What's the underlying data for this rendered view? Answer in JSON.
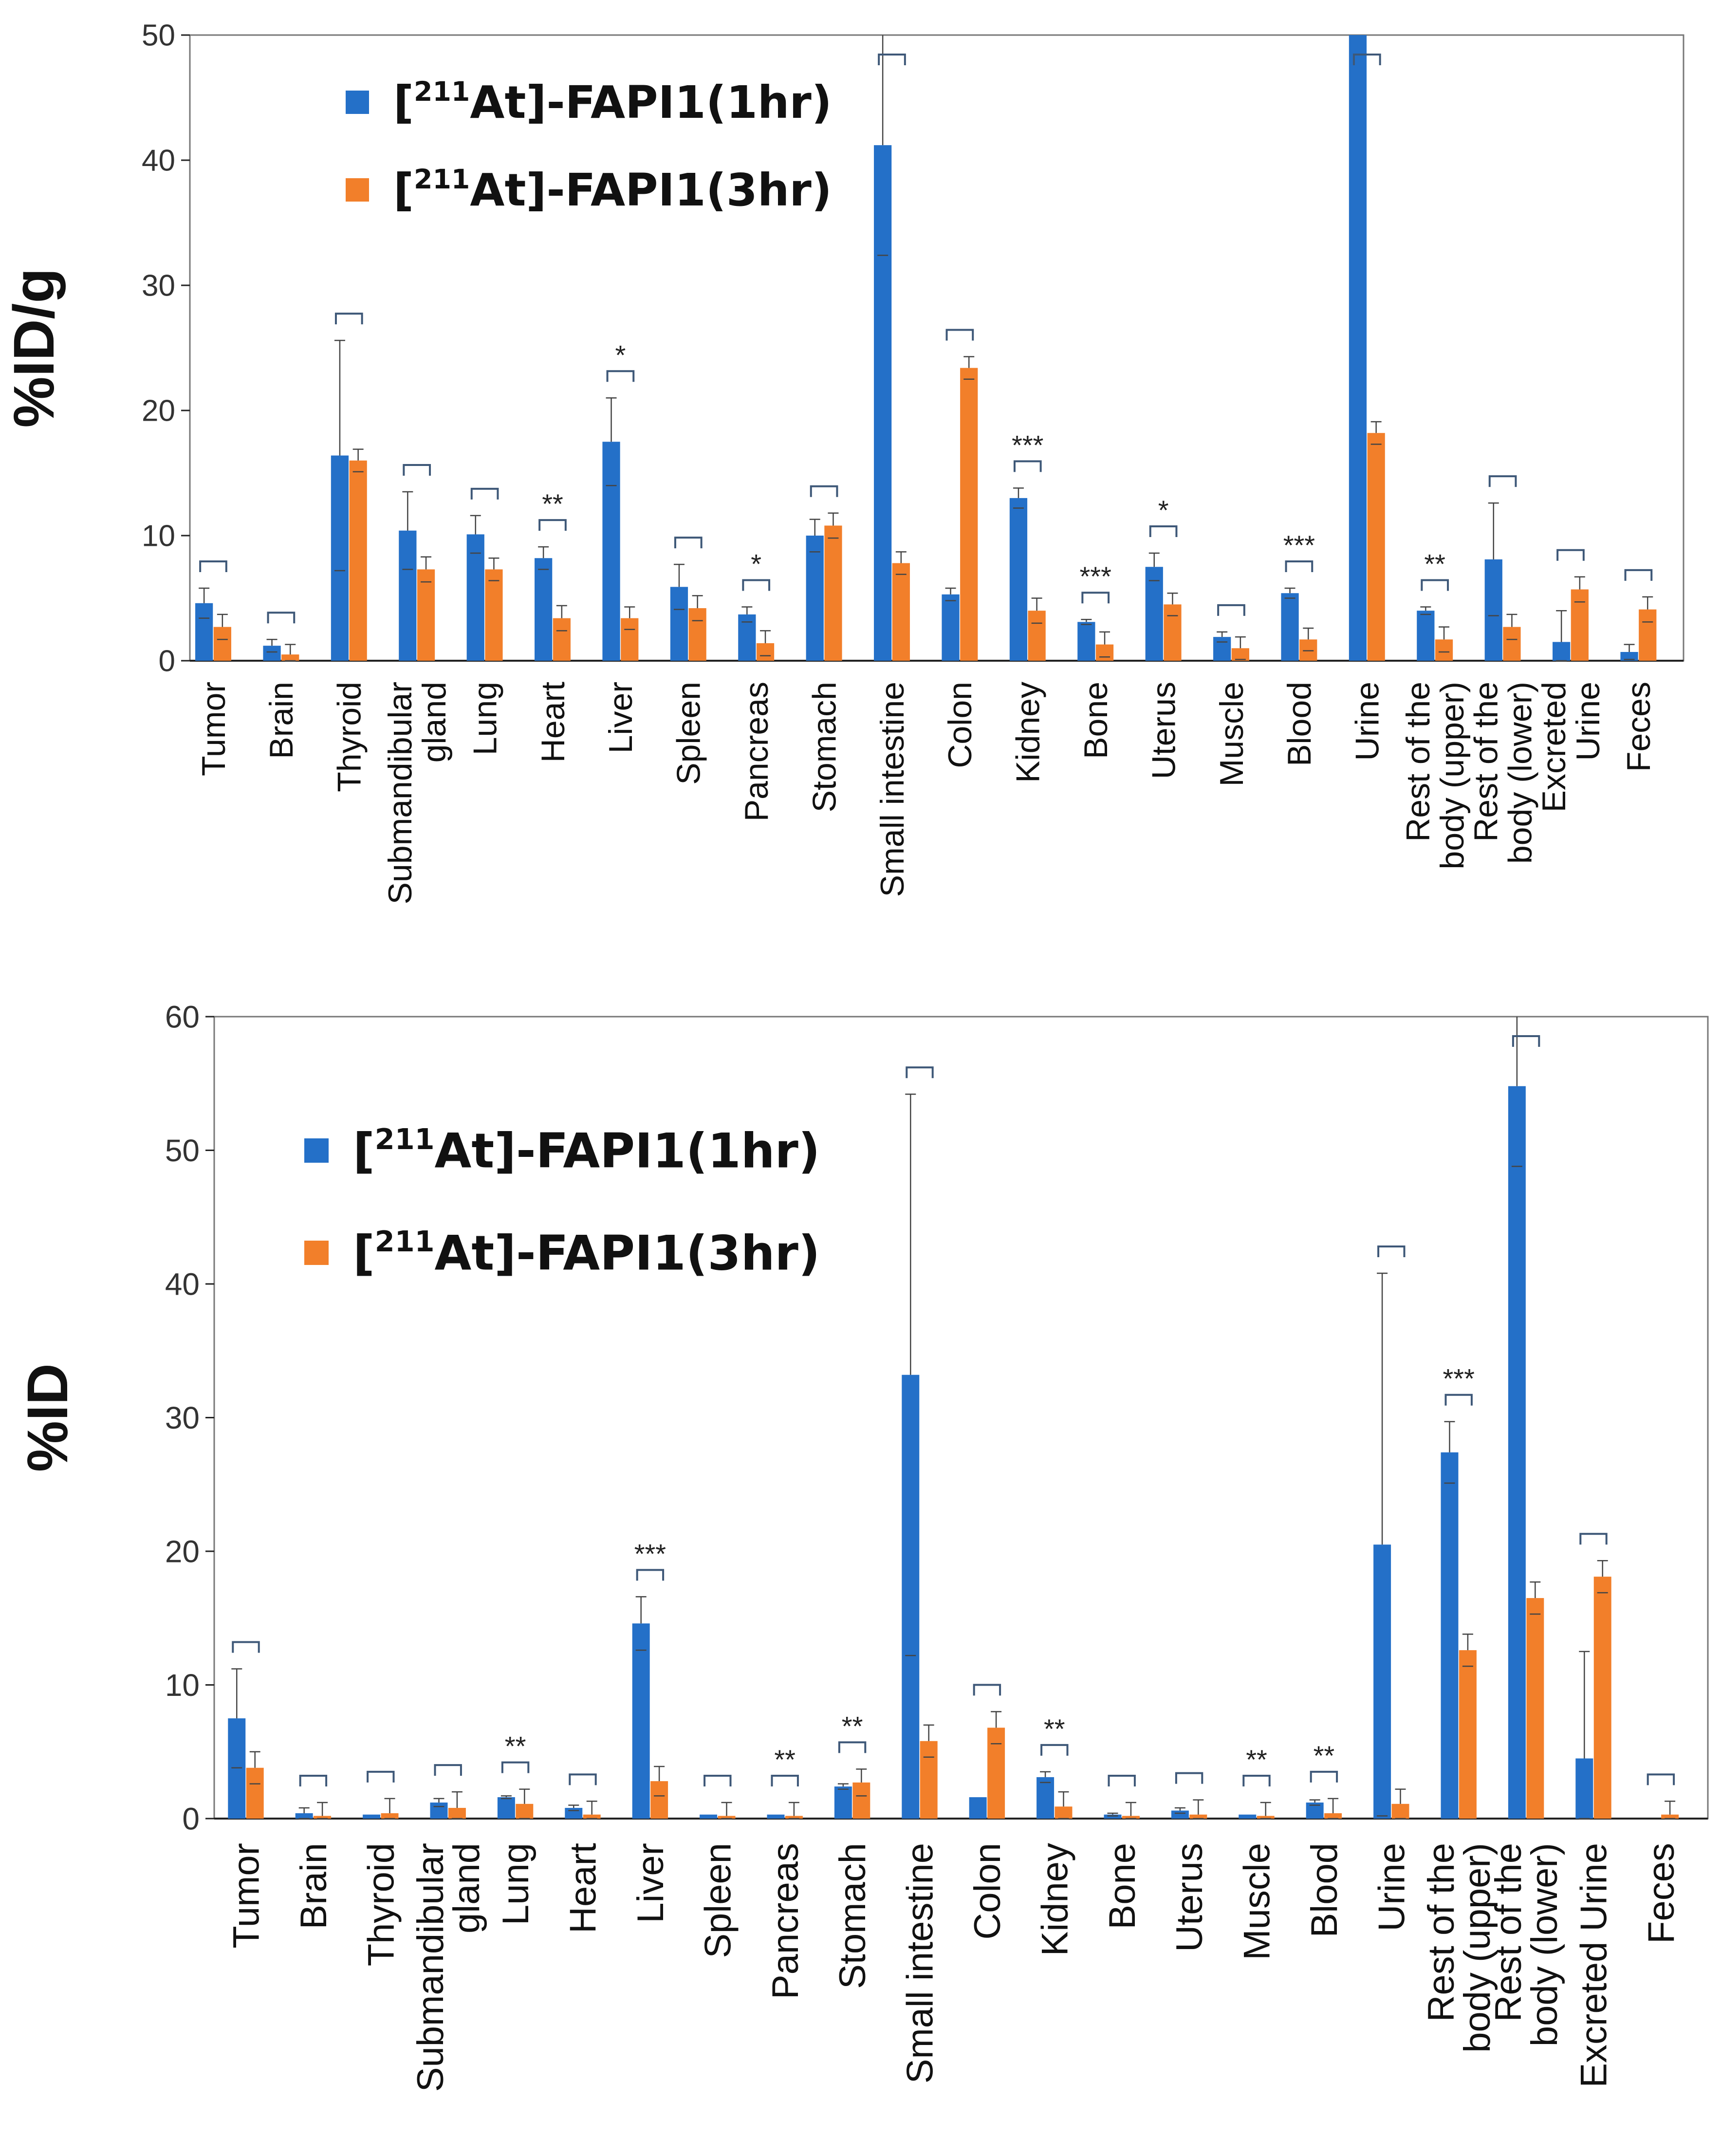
{
  "colors": {
    "series_1hr": "#2470C8",
    "series_3hr": "#F27F2A",
    "error_bar": "#444444",
    "bracket": "#3E5878",
    "axis": "#222222",
    "frame": "#777777"
  },
  "chart_data": [
    {
      "type": "bar",
      "ylabel": "%ID/g",
      "ylim": [
        0,
        50
      ],
      "yticks": [
        "0",
        "10",
        "20",
        "30",
        "40",
        "50"
      ],
      "legend_position": "top-left",
      "series": [
        {
          "name_prefix": "[",
          "name_sup": "211",
          "name_main": "At]-FAPI1",
          "name_time": "(1hr)",
          "values": [
            4.6,
            1.2,
            16.4,
            10.4,
            10.1,
            8.2,
            17.5,
            5.9,
            3.7,
            10.0,
            41.2,
            5.3,
            13.0,
            3.1,
            7.5,
            1.9,
            5.4,
            50,
            4.0,
            8.1,
            1.5,
            0.7
          ],
          "errors": [
            1.2,
            0.5,
            9.2,
            3.1,
            1.5,
            0.9,
            3.5,
            1.8,
            0.6,
            1.3,
            8.8,
            0.5,
            0.8,
            0.2,
            1.1,
            0.4,
            0.4,
            0,
            0.3,
            4.5,
            2.5,
            0.6
          ]
        },
        {
          "name_prefix": "[",
          "name_sup": "211",
          "name_main": "At]-FAPI1",
          "name_time": "(3hr)",
          "values": [
            2.7,
            0.5,
            16.0,
            7.3,
            7.3,
            3.4,
            3.4,
            4.2,
            1.4,
            10.8,
            7.8,
            23.4,
            4.0,
            1.3,
            4.5,
            1.0,
            1.7,
            18.2,
            1.7,
            2.7,
            5.7,
            4.1
          ],
          "errors": [
            1.0,
            0.8,
            0.9,
            1.0,
            0.9,
            1.0,
            0.9,
            1.0,
            1.0,
            1.0,
            0.9,
            0.9,
            1.0,
            1.0,
            0.9,
            0.9,
            0.9,
            0.9,
            1.0,
            1.0,
            1.0,
            1.0
          ]
        }
      ],
      "categories": [
        [
          "Tumor"
        ],
        [
          "Brain"
        ],
        [
          "Thyroid"
        ],
        [
          "Submandibular",
          "gland"
        ],
        [
          "Lung"
        ],
        [
          "Heart"
        ],
        [
          "Liver"
        ],
        [
          "Spleen"
        ],
        [
          "Pancreas"
        ],
        [
          "Stomach"
        ],
        [
          "Small intestine"
        ],
        [
          "Colon"
        ],
        [
          "Kidney"
        ],
        [
          "Bone"
        ],
        [
          "Uterus"
        ],
        [
          "Muscle"
        ],
        [
          "Blood"
        ],
        [
          "Urine"
        ],
        [
          "Rest of the",
          "body (upper)"
        ],
        [
          "Rest of the",
          "body (lower)"
        ],
        [
          "Excreted",
          "Urine"
        ],
        [
          "Feces"
        ]
      ],
      "significance": [
        "",
        "",
        "",
        "",
        "",
        "**",
        "*",
        "",
        "*",
        "",
        "",
        "",
        "***",
        "***",
        "*",
        "",
        "***",
        "",
        "**",
        "",
        "",
        ""
      ]
    },
    {
      "type": "bar",
      "ylabel": "%ID",
      "ylim": [
        0,
        60
      ],
      "yticks": [
        "0",
        "10",
        "20",
        "30",
        "40",
        "50",
        "60"
      ],
      "legend_position": "top-left",
      "series": [
        {
          "name_prefix": "[",
          "name_sup": "211",
          "name_main": "At]-FAPI1",
          "name_time": "(1hr)",
          "values": [
            7.5,
            0.4,
            0.3,
            1.2,
            1.6,
            0.8,
            14.6,
            0.3,
            0.3,
            2.4,
            33.2,
            1.6,
            3.1,
            0.3,
            0.6,
            0.3,
            1.2,
            20.5,
            27.4,
            54.8,
            4.5,
            0
          ],
          "errors": [
            3.7,
            0.4,
            0,
            0.3,
            0.1,
            0.2,
            2.0,
            0,
            0,
            0.2,
            21.0,
            0,
            0.4,
            0.1,
            0.2,
            0,
            0.2,
            20.3,
            2.3,
            6.0,
            8.0,
            0
          ]
        },
        {
          "name_prefix": "[",
          "name_sup": "211",
          "name_main": "At]-FAPI1",
          "name_time": "(3hr)",
          "values": [
            3.8,
            0.2,
            0.4,
            0.8,
            1.1,
            0.3,
            2.8,
            0.2,
            0.2,
            2.7,
            5.8,
            6.8,
            0.9,
            0.2,
            0.3,
            0.2,
            0.4,
            1.1,
            12.6,
            16.5,
            18.1,
            0.3
          ],
          "errors": [
            1.2,
            1.0,
            1.1,
            1.2,
            1.1,
            1.0,
            1.1,
            1.0,
            1.0,
            1.0,
            1.2,
            1.2,
            1.1,
            1.0,
            1.1,
            1.0,
            1.1,
            1.1,
            1.2,
            1.2,
            1.2,
            1.0
          ]
        }
      ],
      "categories": [
        [
          "Tumor"
        ],
        [
          "Brain"
        ],
        [
          "Thyroid"
        ],
        [
          "Submandibular",
          "gland"
        ],
        [
          "Lung"
        ],
        [
          "Heart"
        ],
        [
          "Liver"
        ],
        [
          "Spleen"
        ],
        [
          "Pancreas"
        ],
        [
          "Stomach"
        ],
        [
          "Small intestine"
        ],
        [
          "Colon"
        ],
        [
          "Kidney"
        ],
        [
          "Bone"
        ],
        [
          "Uterus"
        ],
        [
          "Muscle"
        ],
        [
          "Blood"
        ],
        [
          "Urine"
        ],
        [
          "Rest of the",
          "body (upper)"
        ],
        [
          "Rest of the",
          "body (lower)"
        ],
        [
          "Excreted Urine"
        ],
        [
          "Feces"
        ]
      ],
      "significance": [
        "",
        "",
        "",
        "",
        "**",
        "",
        "***",
        "",
        "**",
        "**",
        "",
        "",
        "**",
        "",
        "",
        "**",
        "**",
        "",
        "***",
        "",
        "",
        ""
      ]
    }
  ]
}
